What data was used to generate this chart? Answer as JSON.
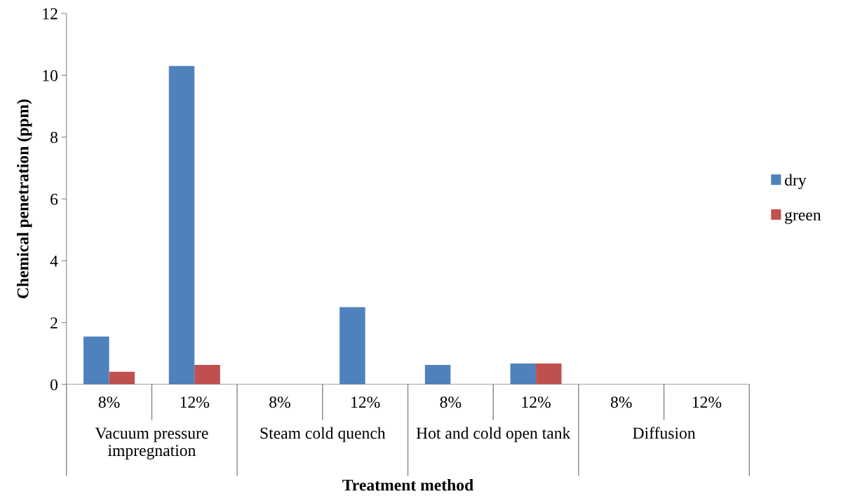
{
  "chart_data": {
    "type": "bar",
    "xlabel": "Treatment method",
    "ylabel": "Chemical penetration (ppm)",
    "categories": [
      "8%",
      "12%",
      "8%",
      "12%",
      "8%",
      "12%",
      "8%",
      "12%"
    ],
    "annotations": [
      "Vacuum pressure impregnation",
      "Steam cold quench",
      "Hot and cold open tank",
      "Diffusion"
    ],
    "series": [
      {
        "name": "dry",
        "color": "#4f81bd",
        "values": [
          1.55,
          10.3,
          0,
          2.5,
          0.63,
          0.68,
          0,
          0
        ]
      },
      {
        "name": "green",
        "color": "#c0504d",
        "values": [
          0.41,
          0.63,
          0,
          0,
          0,
          0.68,
          0,
          0
        ]
      }
    ],
    "ylim": [
      0,
      12
    ],
    "yticks": [
      0,
      2,
      4,
      6,
      8,
      10,
      12
    ],
    "grid": false,
    "legend": "right"
  }
}
